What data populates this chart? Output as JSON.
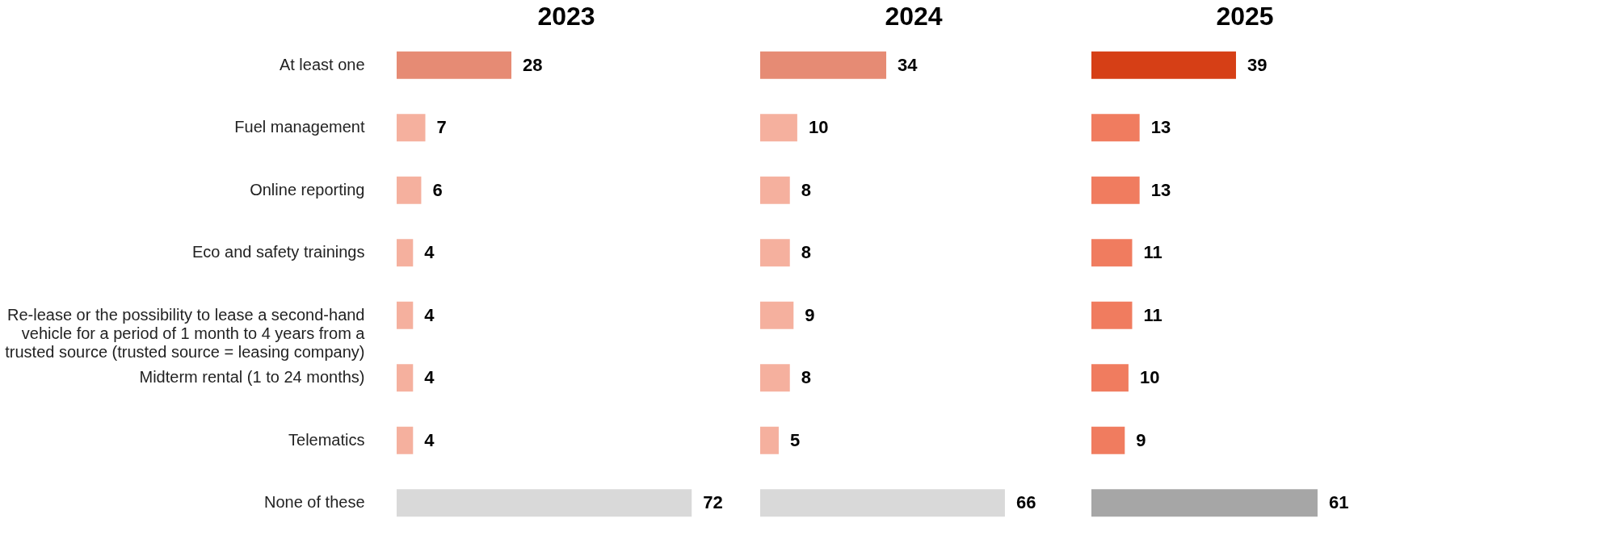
{
  "chart_data": [
    {
      "type": "bar",
      "orientation": "horizontal",
      "title": "2023",
      "data_labels": true,
      "tick_labels": "y",
      "categories": [
        "At least one",
        "Fuel management",
        "Online reporting",
        "Eco and safety trainings",
        "Re-lease or the possibility to lease a second-hand vehicle for a period of 1 month to 4 years from a trusted source (trusted source = leasing company)",
        "Midterm rental (1 to 24 months)",
        "Telematics",
        "None of these"
      ],
      "values": [
        28,
        7,
        6,
        4,
        4,
        4,
        4,
        72
      ],
      "colors": [
        "#e68b74",
        "#f5b09e",
        "#f5b09e",
        "#f5b09e",
        "#f5b09e",
        "#f5b09e",
        "#f5b09e",
        "#d9d9d9"
      ]
    },
    {
      "type": "bar",
      "orientation": "horizontal",
      "title": "2024",
      "data_labels": true,
      "tick_labels": false,
      "categories": [
        null,
        null,
        null,
        null,
        null,
        null,
        null,
        null
      ],
      "values": [
        34,
        10,
        8,
        8,
        9,
        8,
        5,
        66
      ],
      "colors": [
        "#e68b74",
        "#f5b09e",
        "#f5b09e",
        "#f5b09e",
        "#f5b09e",
        "#f5b09e",
        "#f5b09e",
        "#d9d9d9"
      ]
    },
    {
      "type": "bar",
      "orientation": "horizontal",
      "title": "2025",
      "data_labels": true,
      "tick_labels": false,
      "categories": [
        null,
        null,
        null,
        null,
        null,
        null,
        null,
        null
      ],
      "values": [
        39,
        13,
        13,
        11,
        11,
        10,
        9,
        61
      ],
      "colors": [
        "#d63f16",
        "#f07c5f",
        "#f07c5f",
        "#f07c5f",
        "#f07c5f",
        "#f07c5f",
        "#f07c5f",
        "#a6a6a6"
      ]
    }
  ]
}
